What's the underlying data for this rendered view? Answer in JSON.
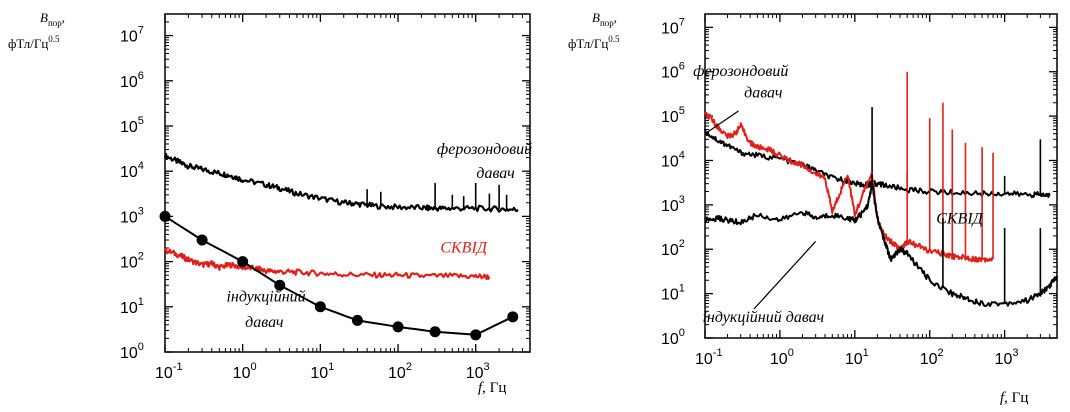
{
  "chart_data": [
    {
      "type": "line",
      "ylabel_main": "B",
      "ylabel_sub": "пор",
      "ylabel_sep": ",",
      "ylabel_unit": "фТл/Гц",
      "ylabel_exp": "0.5",
      "xlabel_var": "f",
      "xlabel_unit": ", Гц",
      "x_scale": "log",
      "y_scale": "log",
      "xlim": [
        0.1,
        5000
      ],
      "ylim": [
        1,
        30000000
      ],
      "x_ticks": [
        {
          "v": 0.1,
          "base": "10",
          "exp": "-1"
        },
        {
          "v": 1,
          "base": "10",
          "exp": "0"
        },
        {
          "v": 10,
          "base": "10",
          "exp": "1"
        },
        {
          "v": 100,
          "base": "10",
          "exp": "2"
        },
        {
          "v": 1000,
          "base": "10",
          "exp": "3"
        }
      ],
      "y_ticks": [
        {
          "v": 1,
          "base": "10",
          "exp": "0"
        },
        {
          "v": 10,
          "base": "10",
          "exp": "1"
        },
        {
          "v": 100,
          "base": "10",
          "exp": "2"
        },
        {
          "v": 1000,
          "base": "10",
          "exp": "3"
        },
        {
          "v": 10000,
          "base": "10",
          "exp": "4"
        },
        {
          "v": 100000,
          "base": "10",
          "exp": "5"
        },
        {
          "v": 1000000,
          "base": "10",
          "exp": "6"
        },
        {
          "v": 10000000,
          "base": "10",
          "exp": "7"
        }
      ],
      "annotations": [
        {
          "text": "ферозондовий",
          "x": 1300,
          "y": 24000,
          "color": "#000000"
        },
        {
          "text": "давач",
          "x": 1800,
          "y": 7000,
          "color": "#000000"
        },
        {
          "text": "СКВІД",
          "x": 700,
          "y": 160,
          "color": "#e0201b"
        },
        {
          "text": "індукційний",
          "x": 2,
          "y": 13,
          "color": "#000000"
        },
        {
          "text": "давач",
          "x": 1.9,
          "y": 3.6,
          "color": "#000000"
        }
      ],
      "series": [
        {
          "color": "#000000",
          "width": 2.2,
          "x": [
            0.1,
            0.15,
            0.2,
            0.3,
            0.5,
            0.7,
            1,
            2,
            3,
            5,
            10,
            20,
            30,
            50,
            100,
            200,
            300,
            500,
            1000,
            2000,
            3500
          ],
          "y": [
            22000,
            16000,
            13000,
            11000,
            9000,
            8000,
            6500,
            5000,
            4200,
            3200,
            2500,
            2000,
            1900,
            1700,
            1600,
            1550,
            1500,
            1500,
            1500,
            1450,
            1400
          ],
          "spikes": [
            [
              40,
              4000
            ],
            [
              60,
              3500
            ],
            [
              300,
              5500
            ],
            [
              500,
              3000
            ],
            [
              700,
              2800
            ],
            [
              1000,
              5500
            ],
            [
              1500,
              3200
            ],
            [
              2000,
              5000
            ],
            [
              2500,
              3000
            ]
          ]
        },
        {
          "color": "#e0201b",
          "width": 2.2,
          "x": [
            0.1,
            0.15,
            0.2,
            0.3,
            0.4,
            0.5,
            0.7,
            1,
            1.5,
            2,
            3,
            5,
            10,
            20,
            50,
            100,
            200,
            500,
            1000,
            1500
          ],
          "y": [
            180,
            140,
            110,
            85,
            90,
            75,
            85,
            75,
            70,
            62,
            60,
            58,
            55,
            52,
            50,
            50,
            48,
            48,
            47,
            46
          ],
          "spikes": []
        },
        {
          "color": "#000000",
          "width": 2,
          "markers": true,
          "x": [
            0.1,
            0.3,
            1,
            3,
            10,
            30,
            100,
            300,
            1000,
            3000
          ],
          "y": [
            1000,
            300,
            100,
            30,
            10,
            5,
            3.6,
            2.8,
            2.4,
            6
          ],
          "spikes": []
        }
      ]
    },
    {
      "type": "line",
      "ylabel_main": "B",
      "ylabel_sub": "пор",
      "ylabel_sep": ",",
      "ylabel_unit": "фТл/Гц",
      "ylabel_exp": "0.5",
      "xlabel_var": "f",
      "xlabel_unit": ", Гц",
      "x_scale": "log",
      "y_scale": "log",
      "xlim": [
        0.1,
        5000
      ],
      "ylim": [
        1,
        20000000
      ],
      "x_ticks": [
        {
          "v": 0.1,
          "base": "10",
          "exp": "-1"
        },
        {
          "v": 1,
          "base": "10",
          "exp": "0"
        },
        {
          "v": 10,
          "base": "10",
          "exp": "1"
        },
        {
          "v": 100,
          "base": "10",
          "exp": "2"
        },
        {
          "v": 1000,
          "base": "10",
          "exp": "3"
        }
      ],
      "y_ticks": [
        {
          "v": 1,
          "base": "10",
          "exp": "0"
        },
        {
          "v": 10,
          "base": "10",
          "exp": "1"
        },
        {
          "v": 100,
          "base": "10",
          "exp": "2"
        },
        {
          "v": 1000,
          "base": "10",
          "exp": "3"
        },
        {
          "v": 10000,
          "base": "10",
          "exp": "4"
        },
        {
          "v": 100000,
          "base": "10",
          "exp": "5"
        },
        {
          "v": 1000000,
          "base": "10",
          "exp": "6"
        },
        {
          "v": 10000000,
          "base": "10",
          "exp": "7"
        }
      ],
      "annotations": [
        {
          "text": "ферозондовий",
          "x": 0.3,
          "y": 800000,
          "color": "#000000"
        },
        {
          "text": "давач",
          "x": 0.6,
          "y": 260000,
          "color": "#000000"
        },
        {
          "text": "СКВІД",
          "x": 250,
          "y": 380,
          "color": "#000000"
        },
        {
          "text": "індукційний давач",
          "x": 0.6,
          "y": 2.3,
          "color": "#000000"
        }
      ],
      "leaders": [
        {
          "x1": 0.1,
          "y1": 40000,
          "x2": 0.28,
          "y2": 130000
        },
        {
          "x1": 0.45,
          "y1": 4.5,
          "x2": 3,
          "y2": 150
        }
      ],
      "series": [
        {
          "color": "#000000",
          "width": 2,
          "x": [
            0.1,
            0.15,
            0.2,
            0.3,
            0.5,
            1,
            2,
            3,
            5,
            8,
            10,
            14,
            17,
            20,
            30,
            50,
            100,
            200,
            500,
            1000,
            2000,
            3000,
            4000
          ],
          "y": [
            45000,
            28000,
            22000,
            15000,
            13000,
            11000,
            8000,
            6000,
            4000,
            3500,
            3000,
            2800,
            3000,
            3000,
            2600,
            2200,
            2000,
            1900,
            1800,
            1800,
            1700,
            1700,
            1600
          ],
          "spikes": [
            [
              17,
              160000
            ],
            [
              50,
              5000
            ],
            [
              200,
              4000
            ],
            [
              1000,
              4500
            ],
            [
              3000,
              30000
            ]
          ]
        },
        {
          "color": "#e0201b",
          "width": 2,
          "x": [
            0.1,
            0.12,
            0.15,
            0.2,
            0.25,
            0.3,
            0.4,
            0.5,
            0.7,
            1,
            1.5,
            2,
            3,
            4,
            5,
            6,
            8,
            10,
            14,
            17,
            20,
            25,
            30,
            40,
            50,
            70,
            100,
            150,
            200,
            300,
            400,
            500,
            700
          ],
          "y": [
            110000,
            90000,
            55000,
            35000,
            40000,
            60000,
            25000,
            20000,
            18000,
            13000,
            9000,
            8000,
            5000,
            4000,
            700,
            1500,
            5000,
            600,
            2500,
            5000,
            450,
            200,
            150,
            100,
            150,
            120,
            90,
            80,
            70,
            65,
            60,
            60,
            60
          ],
          "spikes": [
            [
              50,
              1000000
            ],
            [
              100,
              90000
            ],
            [
              150,
              200000
            ],
            [
              200,
              50000
            ],
            [
              300,
              25000
            ],
            [
              500,
              20000
            ],
            [
              700,
              15000
            ]
          ]
        },
        {
          "color": "#000000",
          "width": 2,
          "x": [
            0.1,
            0.15,
            0.2,
            0.3,
            0.5,
            1,
            2,
            3,
            5,
            8,
            10,
            12,
            15,
            17,
            20,
            25,
            30,
            40,
            50,
            70,
            100,
            200,
            300,
            500,
            1000,
            2000,
            3000,
            4000,
            5000
          ],
          "y": [
            450,
            500,
            450,
            400,
            600,
            450,
            700,
            500,
            600,
            500,
            450,
            600,
            1000,
            3000,
            500,
            150,
            60,
            100,
            80,
            40,
            20,
            10,
            8,
            6,
            6,
            7,
            10,
            15,
            25
          ],
          "spikes": [
            [
              17,
              5000
            ],
            [
              150,
              500
            ],
            [
              1000,
              300
            ],
            [
              3000,
              300
            ]
          ]
        }
      ]
    }
  ]
}
